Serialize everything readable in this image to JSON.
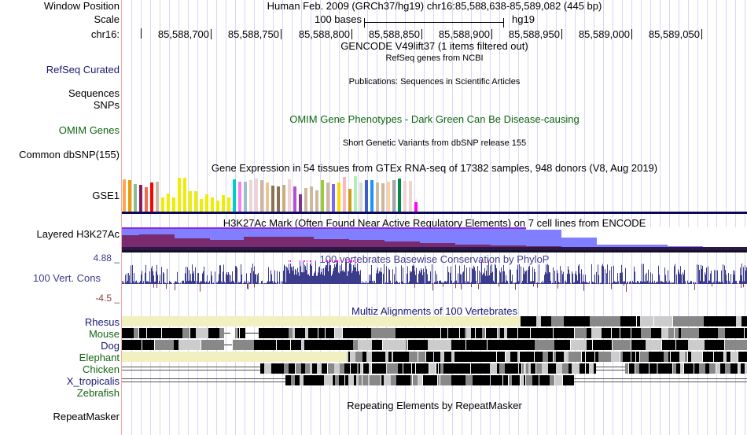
{
  "header": {
    "window_position_label": "Window Position",
    "scale_label": "Scale",
    "chrom_label": "chr16:",
    "assembly_text": "Human Feb. 2009 (GRCh37/hg19)   chr16:85,588,638-85,589,082 (445 bp)",
    "scale_text": "100 bases",
    "scale_db": "hg19",
    "ticks": [
      "85,588,700",
      "85,588,750",
      "85,588,800",
      "85,588,850",
      "85,588,900",
      "85,588,950",
      "85,589,000",
      "85,589,050"
    ]
  },
  "tracks": {
    "gencode_title": "GENCODE V49lift37 (1 items filtered out)",
    "refseq": {
      "label": "RefSeq Curated",
      "title": "RefSeq genes from NCBI"
    },
    "publications": {
      "label_line1": "Sequences",
      "label_line2": "SNPs",
      "title": "Publications: Sequences in Scientific Articles"
    },
    "omim": {
      "label": "OMIM Genes",
      "title": "OMIM Gene Phenotypes - Dark Green Can Be Disease-causing"
    },
    "dbsnp": {
      "label": "Common dbSNP(155)",
      "title": "Short Genetic Variants from dbSNP release 155"
    },
    "gtex": {
      "label": "GSE1",
      "title": "Gene Expression in 54 tissues from GTEx RNA-seq of 17382 samples, 948 donors (V8, Aug 2019)",
      "bars": [
        {
          "color": "#FFA54F",
          "v": 0.94
        },
        {
          "color": "#EE9A00",
          "v": 0.9
        },
        {
          "color": "#8FBC8F",
          "v": 0.8
        },
        {
          "color": "#8B1C62",
          "v": 0.78
        },
        {
          "color": "#EE6A50",
          "v": 0.72
        },
        {
          "color": "#FF0000",
          "v": 0.84
        },
        {
          "color": "#CDB79E",
          "v": 0.86
        },
        {
          "color": "#EEEE00",
          "v": 0.42
        },
        {
          "color": "#EEEE00",
          "v": 0.54
        },
        {
          "color": "#EEEE00",
          "v": 0.42
        },
        {
          "color": "#EEEE00",
          "v": 0.98
        },
        {
          "color": "#EEEE00",
          "v": 0.98
        },
        {
          "color": "#EEEE00",
          "v": 0.6
        },
        {
          "color": "#EEEE00",
          "v": 0.6
        },
        {
          "color": "#EEEE00",
          "v": 0.38
        },
        {
          "color": "#EEEE00",
          "v": 0.52
        },
        {
          "color": "#EEEE00",
          "v": 0.42
        },
        {
          "color": "#EEEE00",
          "v": 0.34
        },
        {
          "color": "#EEEE00",
          "v": 0.48
        },
        {
          "color": "#EEEE00",
          "v": 0.42
        },
        {
          "color": "#00CDCD",
          "v": 0.94
        },
        {
          "color": "#EE82EE",
          "v": 0.86
        },
        {
          "color": "#9AC0CD",
          "v": 0.86
        },
        {
          "color": "#EED5D2",
          "v": 0.92
        },
        {
          "color": "#EED5D2",
          "v": 0.96
        },
        {
          "color": "#CDB79E",
          "v": 0.9
        },
        {
          "color": "#EEC591",
          "v": 0.84
        },
        {
          "color": "#8B7355",
          "v": 0.76
        },
        {
          "color": "#8B7355",
          "v": 0.74
        },
        {
          "color": "#CDAA7D",
          "v": 0.78
        },
        {
          "color": "#EED5D2",
          "v": 0.94
        },
        {
          "color": "#B452CD",
          "v": 0.74
        },
        {
          "color": "#7A378B",
          "v": 0.5
        },
        {
          "color": "#CDB79E",
          "v": 0.68
        },
        {
          "color": "#CDB79E",
          "v": 0.74
        },
        {
          "color": "#CDB79E",
          "v": 0.62
        },
        {
          "color": "#9ACD32",
          "v": 0.92
        },
        {
          "color": "#CDB79E",
          "v": 0.84
        },
        {
          "color": "#7B68EE",
          "v": 0.8
        },
        {
          "color": "#FFD700",
          "v": 0.84
        },
        {
          "color": "#FFB6C1",
          "v": 1.0
        },
        {
          "color": "#CD9B1D",
          "v": 0.66
        },
        {
          "color": "#B4EEB4",
          "v": 1.02
        },
        {
          "color": "#D9D9D9",
          "v": 0.84
        },
        {
          "color": "#3A5FCD",
          "v": 0.9
        },
        {
          "color": "#1E90FF",
          "v": 0.9
        },
        {
          "color": "#CDB79E",
          "v": 0.84
        },
        {
          "color": "#CDB79E",
          "v": 0.82
        },
        {
          "color": "#FFD39B",
          "v": 0.86
        },
        {
          "color": "#A6A6A6",
          "v": 0.9
        },
        {
          "color": "#008B45",
          "v": 0.96
        },
        {
          "color": "#EED5D2",
          "v": 0.88
        },
        {
          "color": "#EED5D2",
          "v": 0.89
        },
        {
          "color": "#FF00FF",
          "v": 0.28
        }
      ]
    },
    "h3k27ac": {
      "label": "Layered H3K27Ac",
      "title": "H3K27Ac Mark (Often Found Near Active Regulatory Elements) on 7 cell lines from ENCODE"
    },
    "phylop": {
      "label": "100 Vert. Cons",
      "max_label": "4.88 _",
      "min_label": "-4.5 _",
      "title": "100 vertebrates Basewise Conservation by PhyloP",
      "ymax": 4.88,
      "ymin": -4.5
    },
    "multiz": {
      "title": "Multiz Alignments of 100 Vertebrates",
      "species": [
        {
          "name": "Rhesus",
          "color": "#191970"
        },
        {
          "name": "Mouse",
          "color": "#116611"
        },
        {
          "name": "Dog",
          "color": "#191970"
        },
        {
          "name": "Elephant",
          "color": "#116611"
        },
        {
          "name": "Chicken",
          "color": "#116611"
        },
        {
          "name": "X_tropicalis",
          "color": "#191970"
        },
        {
          "name": "Zebrafish",
          "color": "#116611"
        }
      ]
    },
    "rmsk": {
      "label": "RepeatMasker",
      "title": "Repeating Elements by RepeatMasker"
    }
  },
  "colors": {
    "navy_label": "#191970",
    "green_label": "#116611",
    "phylop_pos": "#3c3c8c",
    "phylop_neg": "#8c3c3c",
    "phylop_clip": "#ff00ff"
  }
}
